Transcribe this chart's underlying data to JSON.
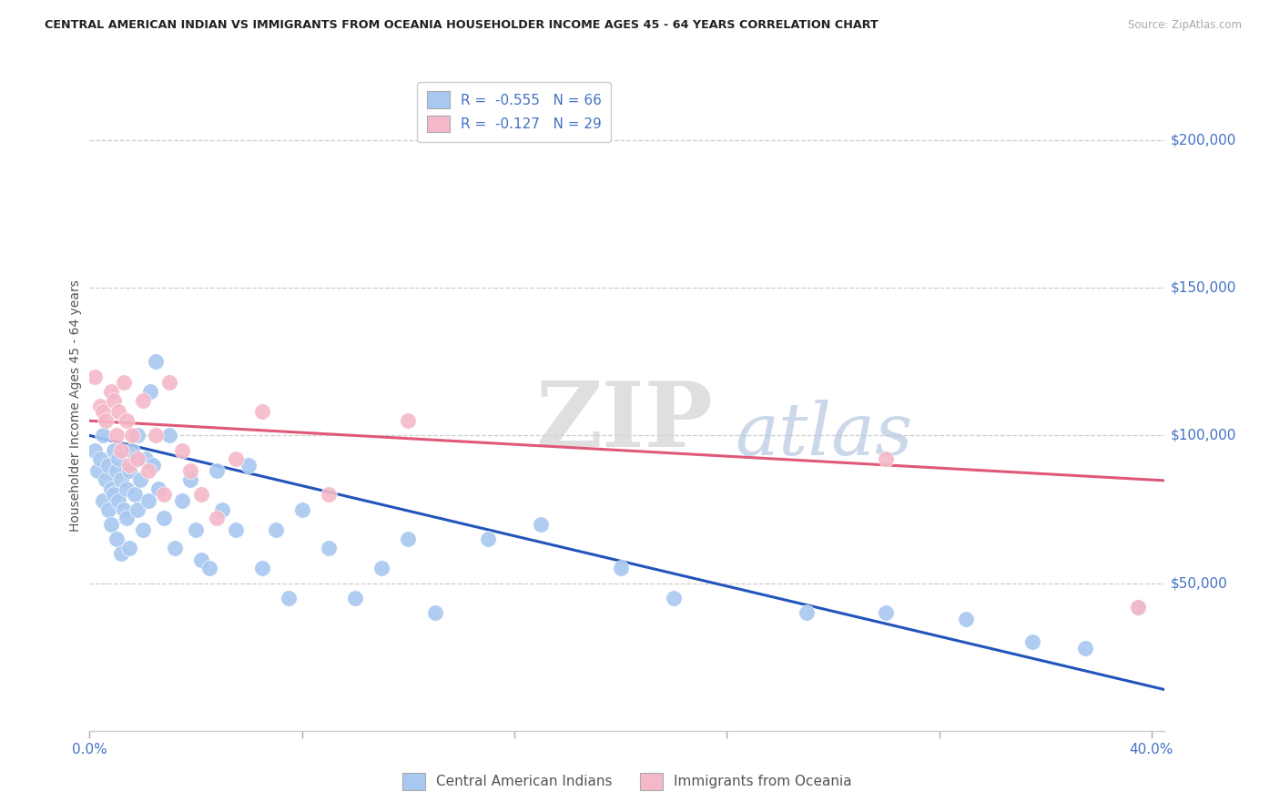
{
  "title": "CENTRAL AMERICAN INDIAN VS IMMIGRANTS FROM OCEANIA HOUSEHOLDER INCOME AGES 45 - 64 YEARS CORRELATION CHART",
  "source": "Source: ZipAtlas.com",
  "ylabel": "Householder Income Ages 45 - 64 years",
  "xlim": [
    0.0,
    0.405
  ],
  "ylim": [
    0,
    220000
  ],
  "xtick_vals": [
    0.0,
    0.08,
    0.16,
    0.24,
    0.32,
    0.4
  ],
  "xtick_labels": [
    "0.0%",
    "",
    "",
    "",
    "",
    "40.0%"
  ],
  "ytick_values": [
    50000,
    100000,
    150000,
    200000
  ],
  "ytick_labels": [
    "$50,000",
    "$100,000",
    "$150,000",
    "$200,000"
  ],
  "blue_R": -0.555,
  "blue_N": 66,
  "pink_R": -0.127,
  "pink_N": 29,
  "legend_label_blue": "Central American Indians",
  "legend_label_pink": "Immigrants from Oceania",
  "blue_color": "#a8c8f0",
  "pink_color": "#f5b8c8",
  "blue_line_color": "#2255bb",
  "pink_line_color": "#e05878",
  "text_color_blue": "#4472c4",
  "grid_color": "#cccccc",
  "watermark_zip_color": "#d8d8d8",
  "watermark_atlas_color": "#b8c8e8",
  "blue_x": [
    0.002,
    0.003,
    0.004,
    0.005,
    0.005,
    0.006,
    0.007,
    0.007,
    0.008,
    0.008,
    0.009,
    0.009,
    0.01,
    0.01,
    0.011,
    0.011,
    0.012,
    0.012,
    0.013,
    0.014,
    0.014,
    0.015,
    0.015,
    0.016,
    0.017,
    0.018,
    0.018,
    0.019,
    0.02,
    0.021,
    0.022,
    0.023,
    0.024,
    0.025,
    0.026,
    0.028,
    0.03,
    0.032,
    0.035,
    0.038,
    0.04,
    0.042,
    0.045,
    0.048,
    0.05,
    0.055,
    0.06,
    0.065,
    0.07,
    0.075,
    0.08,
    0.09,
    0.1,
    0.11,
    0.12,
    0.13,
    0.15,
    0.17,
    0.2,
    0.22,
    0.27,
    0.3,
    0.33,
    0.355,
    0.375,
    0.395
  ],
  "blue_y": [
    95000,
    88000,
    92000,
    78000,
    100000,
    85000,
    90000,
    75000,
    82000,
    70000,
    95000,
    80000,
    88000,
    65000,
    92000,
    78000,
    85000,
    60000,
    75000,
    82000,
    72000,
    88000,
    62000,
    95000,
    80000,
    100000,
    75000,
    85000,
    68000,
    92000,
    78000,
    115000,
    90000,
    125000,
    82000,
    72000,
    100000,
    62000,
    78000,
    85000,
    68000,
    58000,
    55000,
    88000,
    75000,
    68000,
    90000,
    55000,
    68000,
    45000,
    75000,
    62000,
    45000,
    55000,
    65000,
    40000,
    65000,
    70000,
    55000,
    45000,
    40000,
    40000,
    38000,
    30000,
    28000,
    42000
  ],
  "pink_x": [
    0.002,
    0.004,
    0.005,
    0.006,
    0.008,
    0.009,
    0.01,
    0.011,
    0.012,
    0.013,
    0.014,
    0.015,
    0.016,
    0.018,
    0.02,
    0.022,
    0.025,
    0.028,
    0.03,
    0.035,
    0.038,
    0.042,
    0.048,
    0.055,
    0.065,
    0.09,
    0.12,
    0.3,
    0.395
  ],
  "pink_y": [
    120000,
    110000,
    108000,
    105000,
    115000,
    112000,
    100000,
    108000,
    95000,
    118000,
    105000,
    90000,
    100000,
    92000,
    112000,
    88000,
    100000,
    80000,
    118000,
    95000,
    88000,
    80000,
    72000,
    92000,
    108000,
    80000,
    105000,
    92000,
    42000
  ]
}
